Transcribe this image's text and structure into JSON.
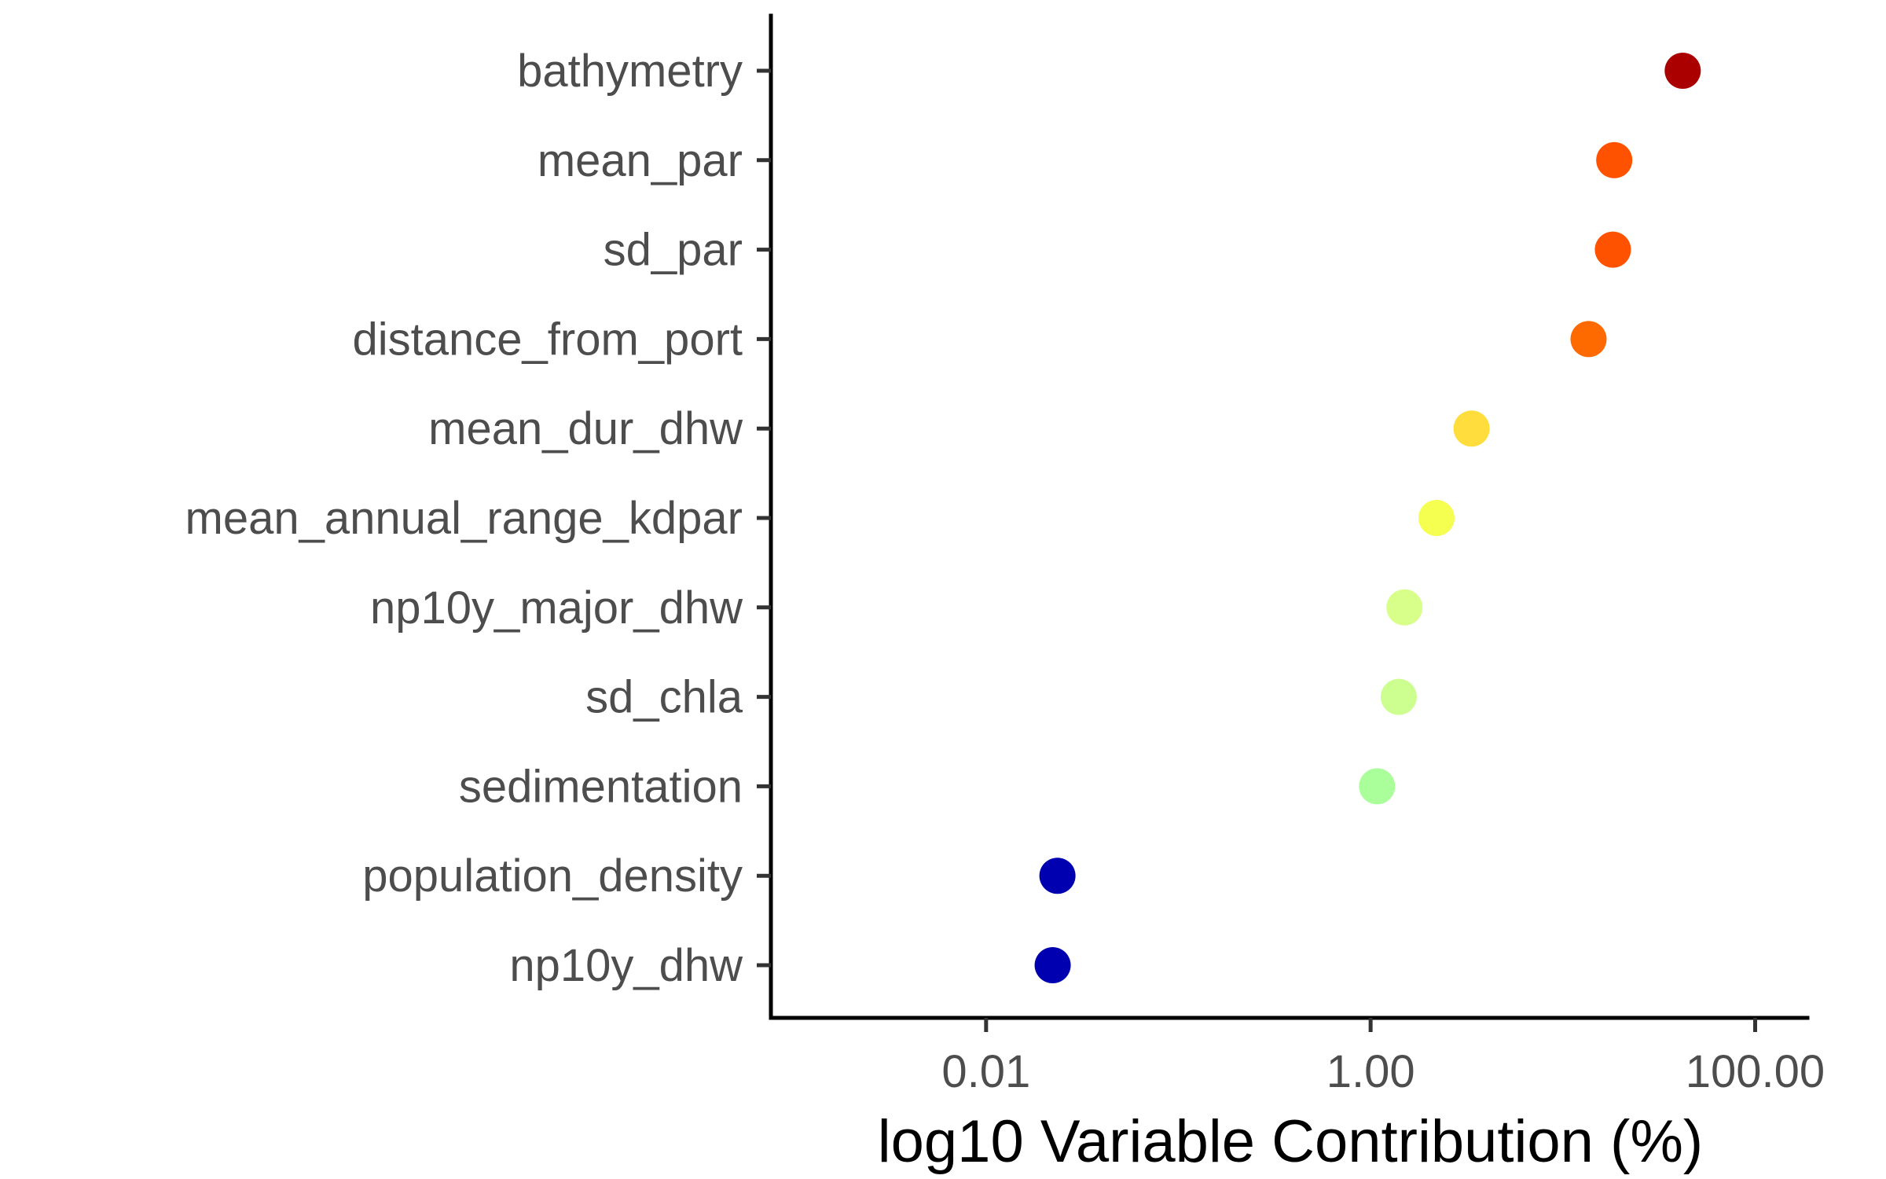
{
  "chart_data": {
    "type": "scatter",
    "title": "",
    "xlabel": "log10 Variable Contribution (%)",
    "ylabel": "",
    "x_scale": "log10",
    "xlim": [
      0.00076,
      187
    ],
    "x_ticks": [
      {
        "value": 0.01,
        "label": "0.01"
      },
      {
        "value": 1,
        "label": "1.00"
      },
      {
        "value": 100,
        "label": "100.00"
      }
    ],
    "grid": false,
    "legend": "none",
    "points": [
      {
        "label": "bathymetry",
        "value": 42.0,
        "color": "#aa0000"
      },
      {
        "label": "mean_par",
        "value": 18.5,
        "color": "#ff5200"
      },
      {
        "label": "sd_par",
        "value": 18.2,
        "color": "#ff5200"
      },
      {
        "label": "distance_from_port",
        "value": 13.6,
        "color": "#ff6a00"
      },
      {
        "label": "mean_dur_dhw",
        "value": 3.35,
        "color": "#ffdd3c"
      },
      {
        "label": "mean_annual_range_kdpar",
        "value": 2.2,
        "color": "#f5ff50"
      },
      {
        "label": "np10y_major_dhw",
        "value": 1.5,
        "color": "#d8ff8a"
      },
      {
        "label": "sd_chla",
        "value": 1.4,
        "color": "#ccff90"
      },
      {
        "label": "sedimentation",
        "value": 1.08,
        "color": "#aaff9a"
      },
      {
        "label": "population_density",
        "value": 0.0235,
        "color": "#0000b0"
      },
      {
        "label": "np10y_dhw",
        "value": 0.0222,
        "color": "#0000b0"
      }
    ]
  }
}
